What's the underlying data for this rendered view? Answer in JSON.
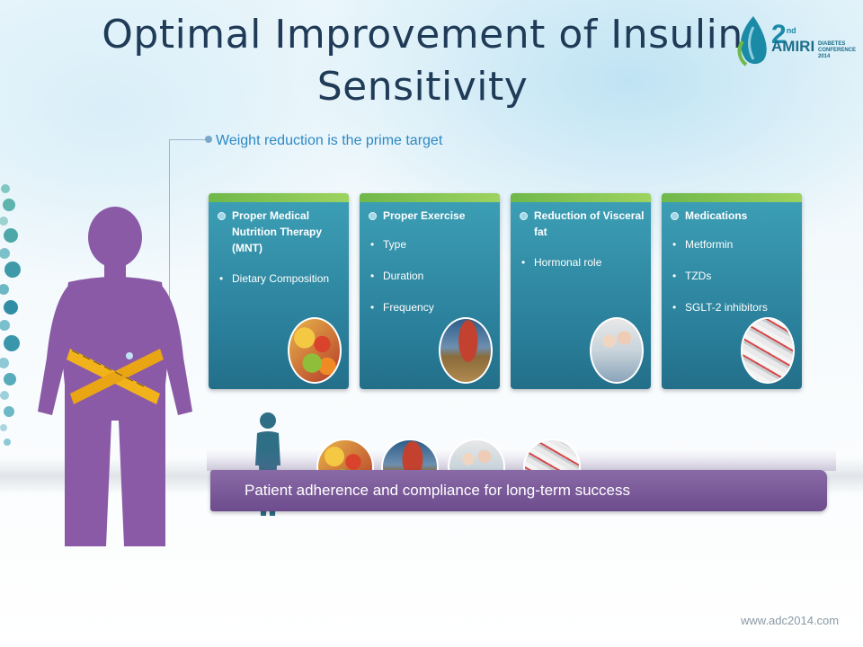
{
  "title": "Optimal Improvement of Insulin Sensitivity",
  "logo": {
    "number": "2",
    "ordinal": "nd",
    "name": "AMIRI",
    "sub": "DIABETES CONFERENCE 2014"
  },
  "subhead": "Weight reduction is the prime target",
  "cards": [
    {
      "heading": "Proper Medical Nutrition Therapy (MNT)",
      "items": [
        "Dietary Composition"
      ],
      "photo": "fruit-photo"
    },
    {
      "heading": "Proper Exercise",
      "items": [
        "Type",
        "Duration",
        "Frequency"
      ],
      "photo": "runner-photo"
    },
    {
      "heading": "Reduction of Visceral fat",
      "items": [
        "Hormonal role"
      ],
      "photo": "couple-photo"
    },
    {
      "heading": "Medications",
      "items": [
        "Metformin",
        "TZDs",
        "SGLT-2 inhibitors"
      ],
      "photo": "pills-photo"
    }
  ],
  "banner": "Patient adherence and compliance for long-term success",
  "footer": "www.adc2014.com",
  "colors": {
    "title": "#1f3b57",
    "subhead": "#2d88c4",
    "card": "#2a7f9a",
    "card_top": "#8cc653",
    "banner": "#7a5a9c",
    "figure": "#8a5aa6",
    "tape": "#f2b21c"
  }
}
